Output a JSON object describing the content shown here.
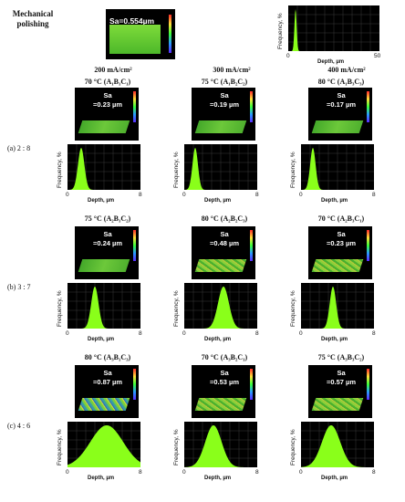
{
  "mechanical": {
    "label": "Mechanical polishing",
    "sa": "Sa=0.554µm",
    "y_label": "Frequency, %",
    "x_label": "Depth, µm",
    "x_min": "0",
    "x_max": "50",
    "peak_at": 4
  },
  "columns": [
    {
      "current": "200 mA/cm²"
    },
    {
      "current": "300 mA/cm²"
    },
    {
      "current": "400 mA/cm²"
    }
  ],
  "y_label": "Frequency, %",
  "x_label": "Depth, µm",
  "x_min": "0",
  "x_max": "8",
  "rows": [
    {
      "label": "(a) 2 : 8",
      "cells": [
        {
          "condition": "70 °C (A₁B₁C₁)",
          "sa_title": "Sa",
          "sa_value": "=0.23 µm",
          "peak": 1.5,
          "width": 0.35,
          "roughness": "smooth"
        },
        {
          "condition": "75 °C (A₁B₂C₂)",
          "sa_title": "Sa",
          "sa_value": "=0.19 µm",
          "peak": 1.2,
          "width": 0.3,
          "roughness": "smooth"
        },
        {
          "condition": "80 °C (A₁B₃C₃)",
          "sa_title": "Sa",
          "sa_value": "=0.17 µm",
          "peak": 1.3,
          "width": 0.3,
          "roughness": "smooth"
        }
      ]
    },
    {
      "label": "(b) 3 : 7",
      "cells": [
        {
          "condition": "75 °C (A₂B₁C₂)",
          "sa_title": "Sa",
          "sa_value": "=0.24 µm",
          "peak": 3.0,
          "width": 0.4,
          "roughness": "smooth"
        },
        {
          "condition": "80 °C (A₂B₂C₃)",
          "sa_title": "Sa",
          "sa_value": "=0.48 µm",
          "peak": 4.3,
          "width": 0.6,
          "roughness": "med"
        },
        {
          "condition": "70 °C (A₂B₃C₁)",
          "sa_title": "Sa",
          "sa_value": "=0.23 µm",
          "peak": 3.5,
          "width": 0.35,
          "roughness": "med"
        }
      ]
    },
    {
      "label": "(c) 4 : 6",
      "cells": [
        {
          "condition": "80 °C (A₃B₁C₃)",
          "sa_title": "Sa",
          "sa_value": "=0.87 µm",
          "peak": 4.3,
          "width": 1.8,
          "roughness": "rough"
        },
        {
          "condition": "70 °C (A₃B₂C₁)",
          "sa_title": "Sa",
          "sa_value": "=0.53 µm",
          "peak": 3.2,
          "width": 0.9,
          "roughness": "med"
        },
        {
          "condition": "75 °C (A₃B₃C₂)",
          "sa_title": "Sa",
          "sa_value": "=0.57 µm",
          "peak": 3.3,
          "width": 1.0,
          "roughness": "med"
        }
      ]
    }
  ]
}
